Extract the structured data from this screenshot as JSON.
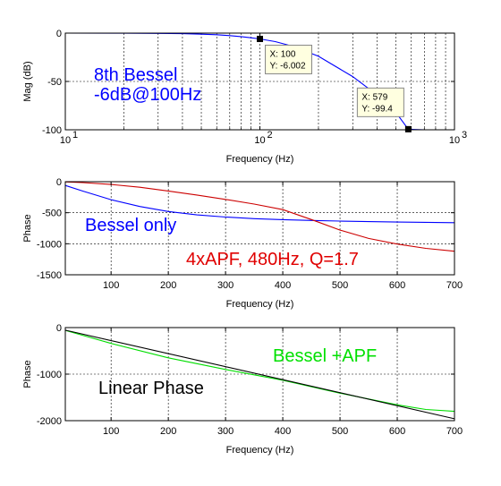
{
  "chart_data": [
    {
      "type": "line",
      "xscale": "log",
      "xlim": [
        10,
        1000
      ],
      "ylim": [
        -100,
        0
      ],
      "xticks": [
        10,
        100,
        1000
      ],
      "xtick_labels": [
        "10",
        "10",
        "10"
      ],
      "xtick_exps": [
        "1",
        "2",
        "3"
      ],
      "yticks": [
        0,
        -50,
        -100
      ],
      "ytick_labels": [
        "0",
        "-50",
        "-100"
      ],
      "xlabel": "Frequency (Hz)",
      "ylabel": "Mag (dB)",
      "grid": true,
      "series": [
        {
          "color": "#0000ff",
          "x": [
            10,
            20,
            30,
            40,
            50,
            60,
            70,
            80,
            90,
            100,
            120,
            150,
            200,
            300,
            400,
            500,
            579,
            700,
            1000
          ],
          "y": [
            0,
            -0.1,
            -0.3,
            -0.6,
            -1.1,
            -1.7,
            -2.6,
            -3.6,
            -4.8,
            -6.0,
            -8.8,
            -14,
            -24,
            -45,
            -64,
            -82,
            -99.4,
            -100,
            -100
          ]
        }
      ],
      "annotations": [
        {
          "text": "8th Bessel",
          "color": "#0000ff"
        },
        {
          "text": "-6dB@100Hz",
          "color": "#0000ff"
        }
      ],
      "datatips": [
        {
          "x": 100,
          "y": -6.002,
          "x_text": "X: 100",
          "y_text": "Y: -6.002"
        },
        {
          "x": 579,
          "y": -99.4,
          "x_text": "X: 579",
          "y_text": "Y: -99.4"
        }
      ]
    },
    {
      "type": "line",
      "xscale": "linear",
      "xlim": [
        20,
        700
      ],
      "ylim": [
        -1500,
        0
      ],
      "xticks": [
        100,
        200,
        300,
        400,
        500,
        600,
        700
      ],
      "xtick_labels": [
        "100",
        "200",
        "300",
        "400",
        "500",
        "600",
        "700"
      ],
      "yticks": [
        0,
        -500,
        -1000,
        -1500
      ],
      "ytick_labels": [
        "0",
        "-500",
        "-1000",
        "-1500"
      ],
      "xlabel": "Frequency (Hz)",
      "ylabel": "Phase",
      "grid": true,
      "series": [
        {
          "color": "#0000ff",
          "x": [
            20,
            50,
            100,
            150,
            200,
            250,
            300,
            350,
            400,
            450,
            500,
            550,
            600,
            650,
            700
          ],
          "y": [
            -60,
            -150,
            -290,
            -400,
            -480,
            -535,
            -570,
            -595,
            -612,
            -625,
            -635,
            -643,
            -650,
            -655,
            -660
          ]
        },
        {
          "color": "#cc0000",
          "x": [
            20,
            50,
            100,
            150,
            200,
            250,
            300,
            350,
            400,
            450,
            500,
            550,
            600,
            650,
            700
          ],
          "y": [
            -3,
            -15,
            -45,
            -90,
            -150,
            -215,
            -285,
            -360,
            -450,
            -610,
            -780,
            -915,
            -1005,
            -1075,
            -1120
          ]
        }
      ],
      "annotations": [
        {
          "text": "Bessel only",
          "color": "#0000ff"
        },
        {
          "text": "4xAPF, 480Hz, Q=1.7",
          "color": "#e00000"
        }
      ]
    },
    {
      "type": "line",
      "xscale": "linear",
      "xlim": [
        20,
        700
      ],
      "ylim": [
        -2000,
        0
      ],
      "xticks": [
        100,
        200,
        300,
        400,
        500,
        600,
        700
      ],
      "xtick_labels": [
        "100",
        "200",
        "300",
        "400",
        "500",
        "600",
        "700"
      ],
      "yticks": [
        0,
        -1000,
        -2000
      ],
      "ytick_labels": [
        "0",
        "-1000",
        "-2000"
      ],
      "xlabel": "Frequency (Hz)",
      "ylabel": "Phase",
      "grid": true,
      "series": [
        {
          "color": "#00dd00",
          "x": [
            20,
            100,
            200,
            300,
            400,
            500,
            600,
            650,
            700
          ],
          "y": [
            -60,
            -340,
            -650,
            -900,
            -1130,
            -1410,
            -1660,
            -1760,
            -1800
          ]
        },
        {
          "color": "#000000",
          "x": [
            20,
            700
          ],
          "y": [
            -55,
            -1960
          ]
        }
      ],
      "annotations": [
        {
          "text": "Bessel +APF",
          "color": "#00e000"
        },
        {
          "text": "Linear Phase",
          "color": "#000000"
        }
      ]
    }
  ]
}
